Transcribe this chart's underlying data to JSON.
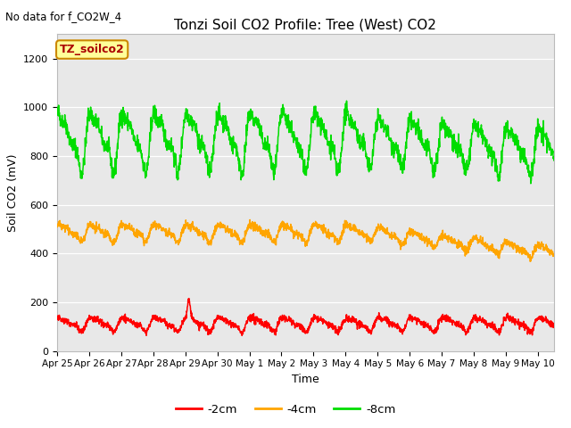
{
  "title": "Tonzi Soil CO2 Profile: Tree (West) CO2",
  "top_left_text": "No data for f_CO2W_4",
  "ylabel": "Soil CO2 (mV)",
  "xlabel": "Time",
  "legend_title": "TZ_soilco2",
  "ylim": [
    0,
    1300
  ],
  "xlim_days": [
    0,
    15.5
  ],
  "tick_labels": [
    "Apr 25",
    "Apr 26",
    "Apr 27",
    "Apr 28",
    "Apr 29",
    "Apr 30",
    "May 1",
    "May 2",
    "May 3",
    "May 4",
    "May 5",
    "May 6",
    "May 7",
    "May 8",
    "May 9",
    "May 10"
  ],
  "tick_positions": [
    0,
    1,
    2,
    3,
    4,
    5,
    6,
    7,
    8,
    9,
    10,
    11,
    12,
    13,
    14,
    15
  ],
  "bg_color": "#e8e8e8",
  "fig_color": "#ffffff",
  "line_colors": {
    "neg2cm": "#ff0000",
    "neg4cm": "#ffa500",
    "neg8cm": "#00dd00"
  },
  "line_labels": {
    "-2cm": "-2cm",
    "-4cm": "-4cm",
    "-8cm": "-8cm"
  }
}
